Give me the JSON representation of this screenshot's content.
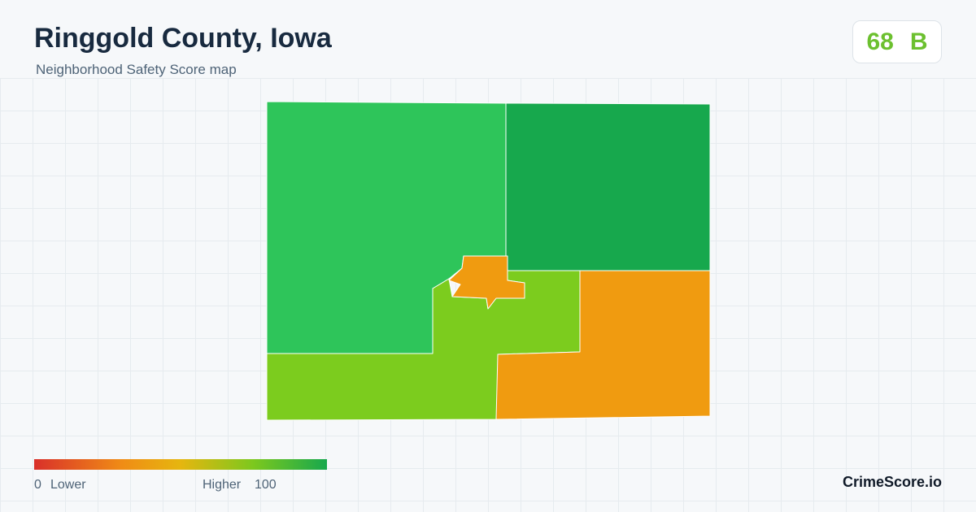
{
  "header": {
    "title": "Ringgold County, Iowa",
    "subtitle": "Neighborhood Safety Score map"
  },
  "badge": {
    "score": 68,
    "grade": "B"
  },
  "legend": {
    "min": 0,
    "min_label": "Lower",
    "max_label": "Higher",
    "max": 100
  },
  "brand": "CrimeScore.io"
}
